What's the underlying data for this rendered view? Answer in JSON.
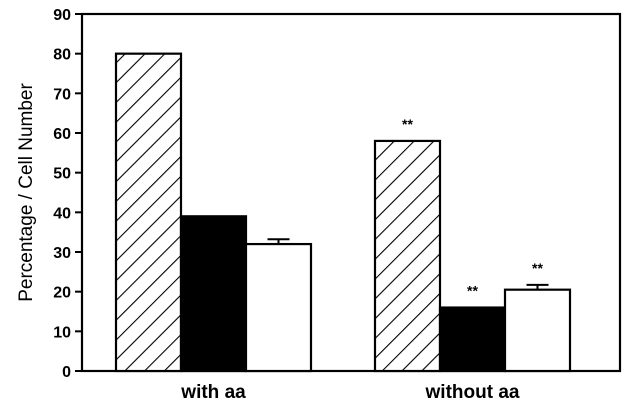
{
  "chart_data": {
    "type": "bar",
    "title": "",
    "xlabel": "",
    "ylabel": "Percentage / Cell Number",
    "ylim": [
      0,
      90
    ],
    "yticks": [
      0,
      10,
      20,
      30,
      40,
      50,
      60,
      70,
      80,
      90
    ],
    "categories": [
      "with aa",
      "without aa"
    ],
    "series": [
      {
        "fill": "hatched",
        "values": [
          80,
          58
        ],
        "errors": [
          0,
          0
        ],
        "annotations": [
          "",
          "**"
        ]
      },
      {
        "fill": "#000000",
        "values": [
          39,
          16
        ],
        "errors": [
          0,
          0
        ],
        "annotations": [
          "",
          "**"
        ]
      },
      {
        "fill": "#ffffff",
        "values": [
          32,
          20.5
        ],
        "errors": [
          1.2,
          1.2
        ],
        "annotations": [
          "",
          "**"
        ]
      }
    ],
    "grid": false,
    "legend": "none"
  }
}
